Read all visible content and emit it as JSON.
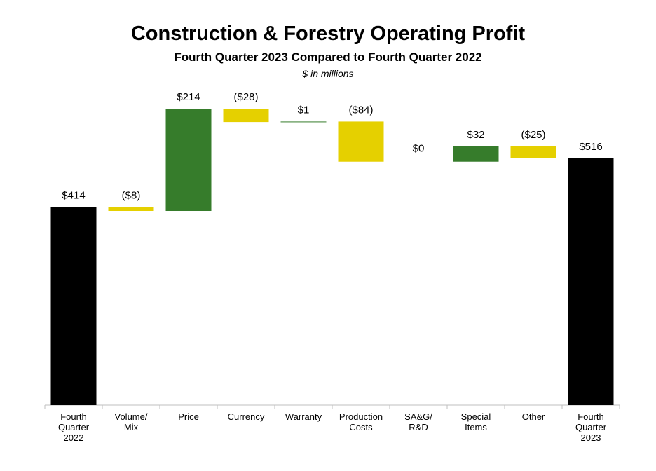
{
  "chart_data": {
    "type": "bar",
    "subtype": "waterfall",
    "title": "Construction & Forestry Operating Profit",
    "subtitle": "Fourth Quarter 2023 Compared to Fourth Quarter 2022",
    "units_note": "$ in millions",
    "categories": [
      [
        "Fourth",
        "Quarter",
        "2022"
      ],
      [
        "Volume/",
        "Mix"
      ],
      [
        "Price"
      ],
      [
        "Currency"
      ],
      [
        "Warranty"
      ],
      [
        "Production",
        "Costs"
      ],
      [
        "SA&G/",
        "R&D"
      ],
      [
        "Special",
        "Items"
      ],
      [
        "Other"
      ],
      [
        "Fourth",
        "Quarter",
        "2023"
      ]
    ],
    "values": [
      414,
      -8,
      214,
      -28,
      1,
      -84,
      0,
      32,
      -25,
      516
    ],
    "bar_kinds": [
      "total",
      "change",
      "change",
      "change",
      "change",
      "change",
      "change",
      "change",
      "change",
      "total"
    ],
    "data_labels": [
      "$414",
      "($8)",
      "$214",
      "($28)",
      "$1",
      "($84)",
      "$0",
      "$32",
      "($25)",
      "$516"
    ],
    "ylim": [
      0,
      620
    ],
    "grid": false,
    "legend": "none",
    "colors": {
      "total": "#000000",
      "increase": "#367C2B",
      "decrease": "#E5D000",
      "axis": "#BFBFBF"
    }
  }
}
